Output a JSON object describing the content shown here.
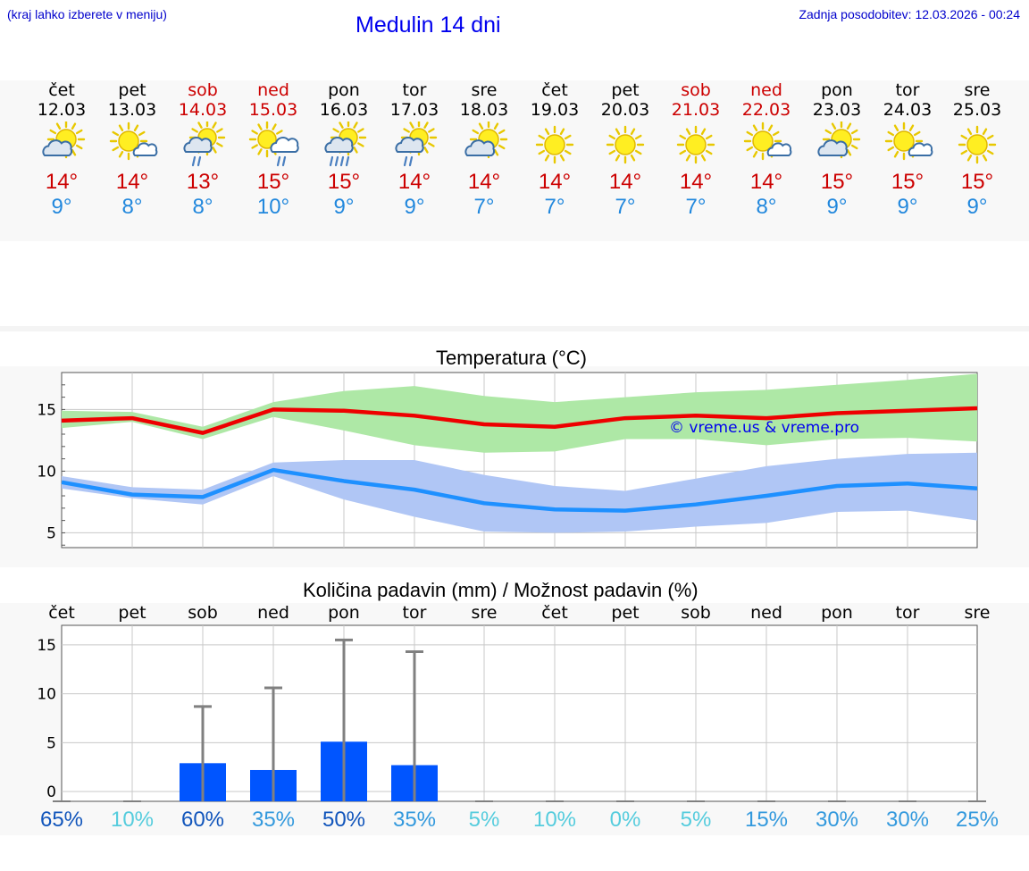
{
  "header": {
    "hint": "(kraj lahko izberete v meniju)",
    "title": "Medulin 14 dni",
    "updated": "Zadnja posodobitev: 12.03.2026 - 00:24"
  },
  "days": [
    {
      "name": "čet",
      "date": "12.03",
      "weekend": false,
      "icon": "partly-cloudy-icon",
      "max": "14°",
      "min": "9°"
    },
    {
      "name": "pet",
      "date": "13.03",
      "weekend": false,
      "icon": "mostly-sunny-icon",
      "max": "14°",
      "min": "8°"
    },
    {
      "name": "sob",
      "date": "14.03",
      "weekend": true,
      "icon": "light-rain-icon",
      "max": "13°",
      "min": "8°"
    },
    {
      "name": "ned",
      "date": "15.03",
      "weekend": true,
      "icon": "sun-rain-cloud-icon",
      "max": "15°",
      "min": "10°"
    },
    {
      "name": "pon",
      "date": "16.03",
      "weekend": false,
      "icon": "rain-icon",
      "max": "15°",
      "min": "9°"
    },
    {
      "name": "tor",
      "date": "17.03",
      "weekend": false,
      "icon": "light-rain-icon",
      "max": "14°",
      "min": "9°"
    },
    {
      "name": "sre",
      "date": "18.03",
      "weekend": false,
      "icon": "partly-cloudy-icon",
      "max": "14°",
      "min": "7°"
    },
    {
      "name": "čet",
      "date": "19.03",
      "weekend": false,
      "icon": "sunny-icon",
      "max": "14°",
      "min": "7°"
    },
    {
      "name": "pet",
      "date": "20.03",
      "weekend": false,
      "icon": "sunny-icon",
      "max": "14°",
      "min": "7°"
    },
    {
      "name": "sob",
      "date": "21.03",
      "weekend": true,
      "icon": "sunny-icon",
      "max": "14°",
      "min": "7°"
    },
    {
      "name": "ned",
      "date": "22.03",
      "weekend": true,
      "icon": "mostly-sunny-icon",
      "max": "14°",
      "min": "8°"
    },
    {
      "name": "pon",
      "date": "23.03",
      "weekend": false,
      "icon": "partly-cloudy-icon",
      "max": "15°",
      "min": "9°"
    },
    {
      "name": "tor",
      "date": "24.03",
      "weekend": false,
      "icon": "mostly-sunny-icon",
      "max": "15°",
      "min": "9°"
    },
    {
      "name": "sre",
      "date": "25.03",
      "weekend": false,
      "icon": "sunny-icon",
      "max": "15°",
      "min": "9°"
    }
  ],
  "colors": {
    "max_line": "#ee0000",
    "min_line": "#1e90ff",
    "max_band": "#aee8a6",
    "min_band": "#b0c6f5",
    "bar": "#0055ff",
    "whisker": "#808080",
    "grid": "#c8c8c8"
  },
  "chart_data": [
    {
      "type": "line",
      "title": "Temperatura (°C)",
      "ylim": [
        3.8,
        18
      ],
      "yticks": [
        5,
        10,
        15
      ],
      "series": [
        {
          "name": "max",
          "values": [
            14.1,
            14.3,
            13.1,
            15.0,
            14.9,
            14.5,
            13.8,
            13.6,
            14.3,
            14.5,
            14.3,
            14.7,
            14.9,
            15.1
          ]
        },
        {
          "name": "max_upper",
          "values": [
            14.9,
            14.8,
            13.6,
            15.6,
            16.5,
            16.9,
            16.1,
            15.6,
            16.0,
            16.4,
            16.6,
            17.0,
            17.4,
            17.9
          ]
        },
        {
          "name": "max_lower",
          "values": [
            13.5,
            14.0,
            12.6,
            14.4,
            13.3,
            12.1,
            11.5,
            11.6,
            12.6,
            12.6,
            12.1,
            12.6,
            12.7,
            12.4
          ]
        },
        {
          "name": "min",
          "values": [
            9.1,
            8.1,
            7.9,
            10.1,
            9.2,
            8.5,
            7.4,
            6.9,
            6.8,
            7.3,
            8.0,
            8.8,
            9.0,
            8.6
          ]
        },
        {
          "name": "min_upper",
          "values": [
            9.6,
            8.7,
            8.5,
            10.7,
            10.9,
            10.9,
            9.7,
            8.8,
            8.4,
            9.4,
            10.4,
            11.0,
            11.4,
            11.5
          ]
        },
        {
          "name": "min_lower",
          "values": [
            8.6,
            7.8,
            7.3,
            9.6,
            7.7,
            6.3,
            5.1,
            5.0,
            5.1,
            5.5,
            5.8,
            6.7,
            6.8,
            6.0
          ]
        }
      ],
      "watermark": "© vreme.us & vreme.pro"
    },
    {
      "type": "bar",
      "title": "Količina padavin (mm) / Možnost padavin (%)",
      "categories": [
        "čet",
        "pet",
        "sob",
        "ned",
        "pon",
        "tor",
        "sre",
        "čet",
        "pet",
        "sob",
        "ned",
        "pon",
        "tor",
        "sre"
      ],
      "ylim": [
        -1,
        17
      ],
      "yticks": [
        0,
        5,
        10,
        15
      ],
      "values": [
        0,
        0,
        2.9,
        2.2,
        5.1,
        2.7,
        0,
        0,
        0,
        0,
        0,
        0,
        0,
        0
      ],
      "max_values": [
        0,
        0,
        8.7,
        10.6,
        15.5,
        14.3,
        0,
        0,
        0,
        0,
        0,
        0,
        0,
        0
      ],
      "probabilities": [
        "65%",
        "10%",
        "60%",
        "35%",
        "50%",
        "35%",
        "5%",
        "10%",
        "0%",
        "5%",
        "15%",
        "30%",
        "30%",
        "25%"
      ],
      "prob_colors": [
        "#1155bb",
        "#55ccdd",
        "#1155bb",
        "#3399dd",
        "#1155bb",
        "#3399dd",
        "#55ccdd",
        "#55ccdd",
        "#55ccdd",
        "#55ccdd",
        "#3399dd",
        "#3399dd",
        "#3399dd",
        "#3399dd"
      ]
    }
  ]
}
